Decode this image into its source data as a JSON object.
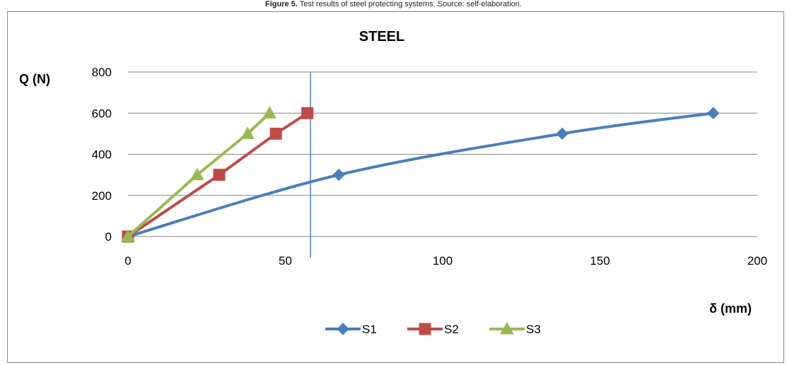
{
  "caption": {
    "prefix": "Figure 5.",
    "text": " Test results of steel protecting systems. Source: self-elaboration."
  },
  "chart_data": {
    "type": "line",
    "title": "STEEL",
    "xlabel": "δ (mm)",
    "ylabel": "Q (N)",
    "xlim": [
      0,
      200
    ],
    "ylim": [
      0,
      800
    ],
    "xticks": [
      0,
      50,
      100,
      150,
      200
    ],
    "yticks": [
      0,
      200,
      400,
      600,
      800
    ],
    "grid": "horizontal",
    "legend": "bottom-center",
    "reference_line_x": 58,
    "series": [
      {
        "name": "S1",
        "color": "#4A7EBB",
        "marker": "diamond",
        "smooth": true,
        "points": [
          [
            0,
            0
          ],
          [
            67,
            300
          ],
          [
            138,
            500
          ],
          [
            186,
            600
          ]
        ]
      },
      {
        "name": "S2",
        "color": "#BE4B48",
        "marker": "square",
        "smooth": false,
        "points": [
          [
            0,
            0
          ],
          [
            29,
            300
          ],
          [
            47,
            500
          ],
          [
            57,
            600
          ]
        ]
      },
      {
        "name": "S3",
        "color": "#98B954",
        "marker": "triangle",
        "smooth": false,
        "points": [
          [
            0,
            0
          ],
          [
            22,
            300
          ],
          [
            38,
            500
          ],
          [
            45,
            600
          ]
        ]
      }
    ]
  }
}
